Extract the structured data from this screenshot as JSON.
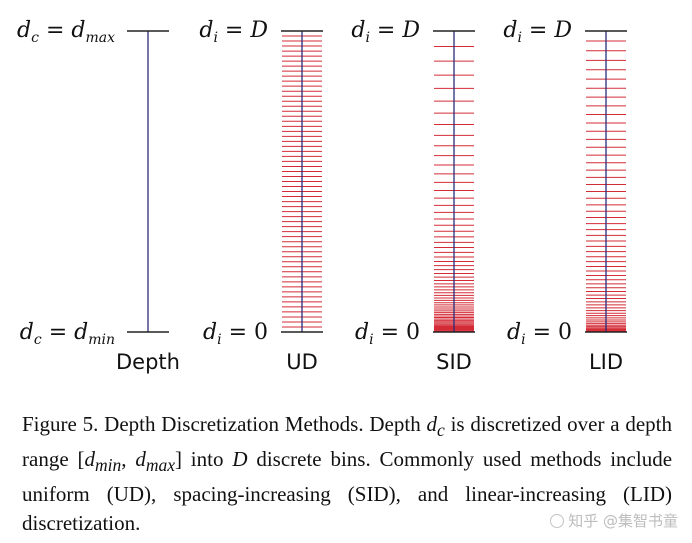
{
  "figure": {
    "columns": [
      {
        "id": "depth",
        "name": "Depth",
        "top_label": {
          "base": "d",
          "sub": "c",
          "eq": " = ",
          "rhs_base": "d",
          "rhs_sub": "max"
        },
        "bottom_label": {
          "base": "d",
          "sub": "c",
          "eq": " = ",
          "rhs_base": "d",
          "rhs_sub": "min"
        },
        "method": "none",
        "bins": 0
      },
      {
        "id": "ud",
        "name": "UD",
        "top_label": {
          "base": "d",
          "sub": "i",
          "eq": " = ",
          "rhs_base": "D",
          "rhs_sub": ""
        },
        "bottom_label": {
          "base": "d",
          "sub": "i",
          "eq": " = ",
          "rhs_base": "0",
          "rhs_sub": ""
        },
        "method": "uniform",
        "bins": 60
      },
      {
        "id": "sid",
        "name": "SID",
        "top_label": {
          "base": "d",
          "sub": "i",
          "eq": " = ",
          "rhs_base": "D",
          "rhs_sub": ""
        },
        "bottom_label": {
          "base": "d",
          "sub": "i",
          "eq": " = ",
          "rhs_base": "0",
          "rhs_sub": ""
        },
        "method": "spacing-increasing",
        "bins": 60
      },
      {
        "id": "lid",
        "name": "LID",
        "top_label": {
          "base": "d",
          "sub": "i",
          "eq": " = ",
          "rhs_base": "D",
          "rhs_sub": ""
        },
        "bottom_label": {
          "base": "d",
          "sub": "i",
          "eq": " = ",
          "rhs_base": "0",
          "rhs_sub": ""
        },
        "method": "linear-increasing",
        "bins": 60
      }
    ],
    "colors": {
      "axis": "#2b2b7a",
      "bin": "#d42b36",
      "text": "#111111"
    }
  },
  "caption": {
    "p1": "Figure 5. Depth Discretization Methods. Depth ",
    "v1": "d",
    "v1_sub": "c",
    "p2": " is discretized over a depth range ",
    "range_open": "[",
    "v2": "d",
    "v2_sub": "min",
    "range_comma": ", ",
    "v3": "d",
    "v3_sub": "max",
    "range_close": "]",
    "p3": " into ",
    "v4": "D",
    "p4": " discrete bins. Commonly used methods include uniform (UD), spacing-increasing (SID), and linear-increasing (LID) discretization."
  },
  "watermark": {
    "text": "知乎 @集智书童"
  }
}
